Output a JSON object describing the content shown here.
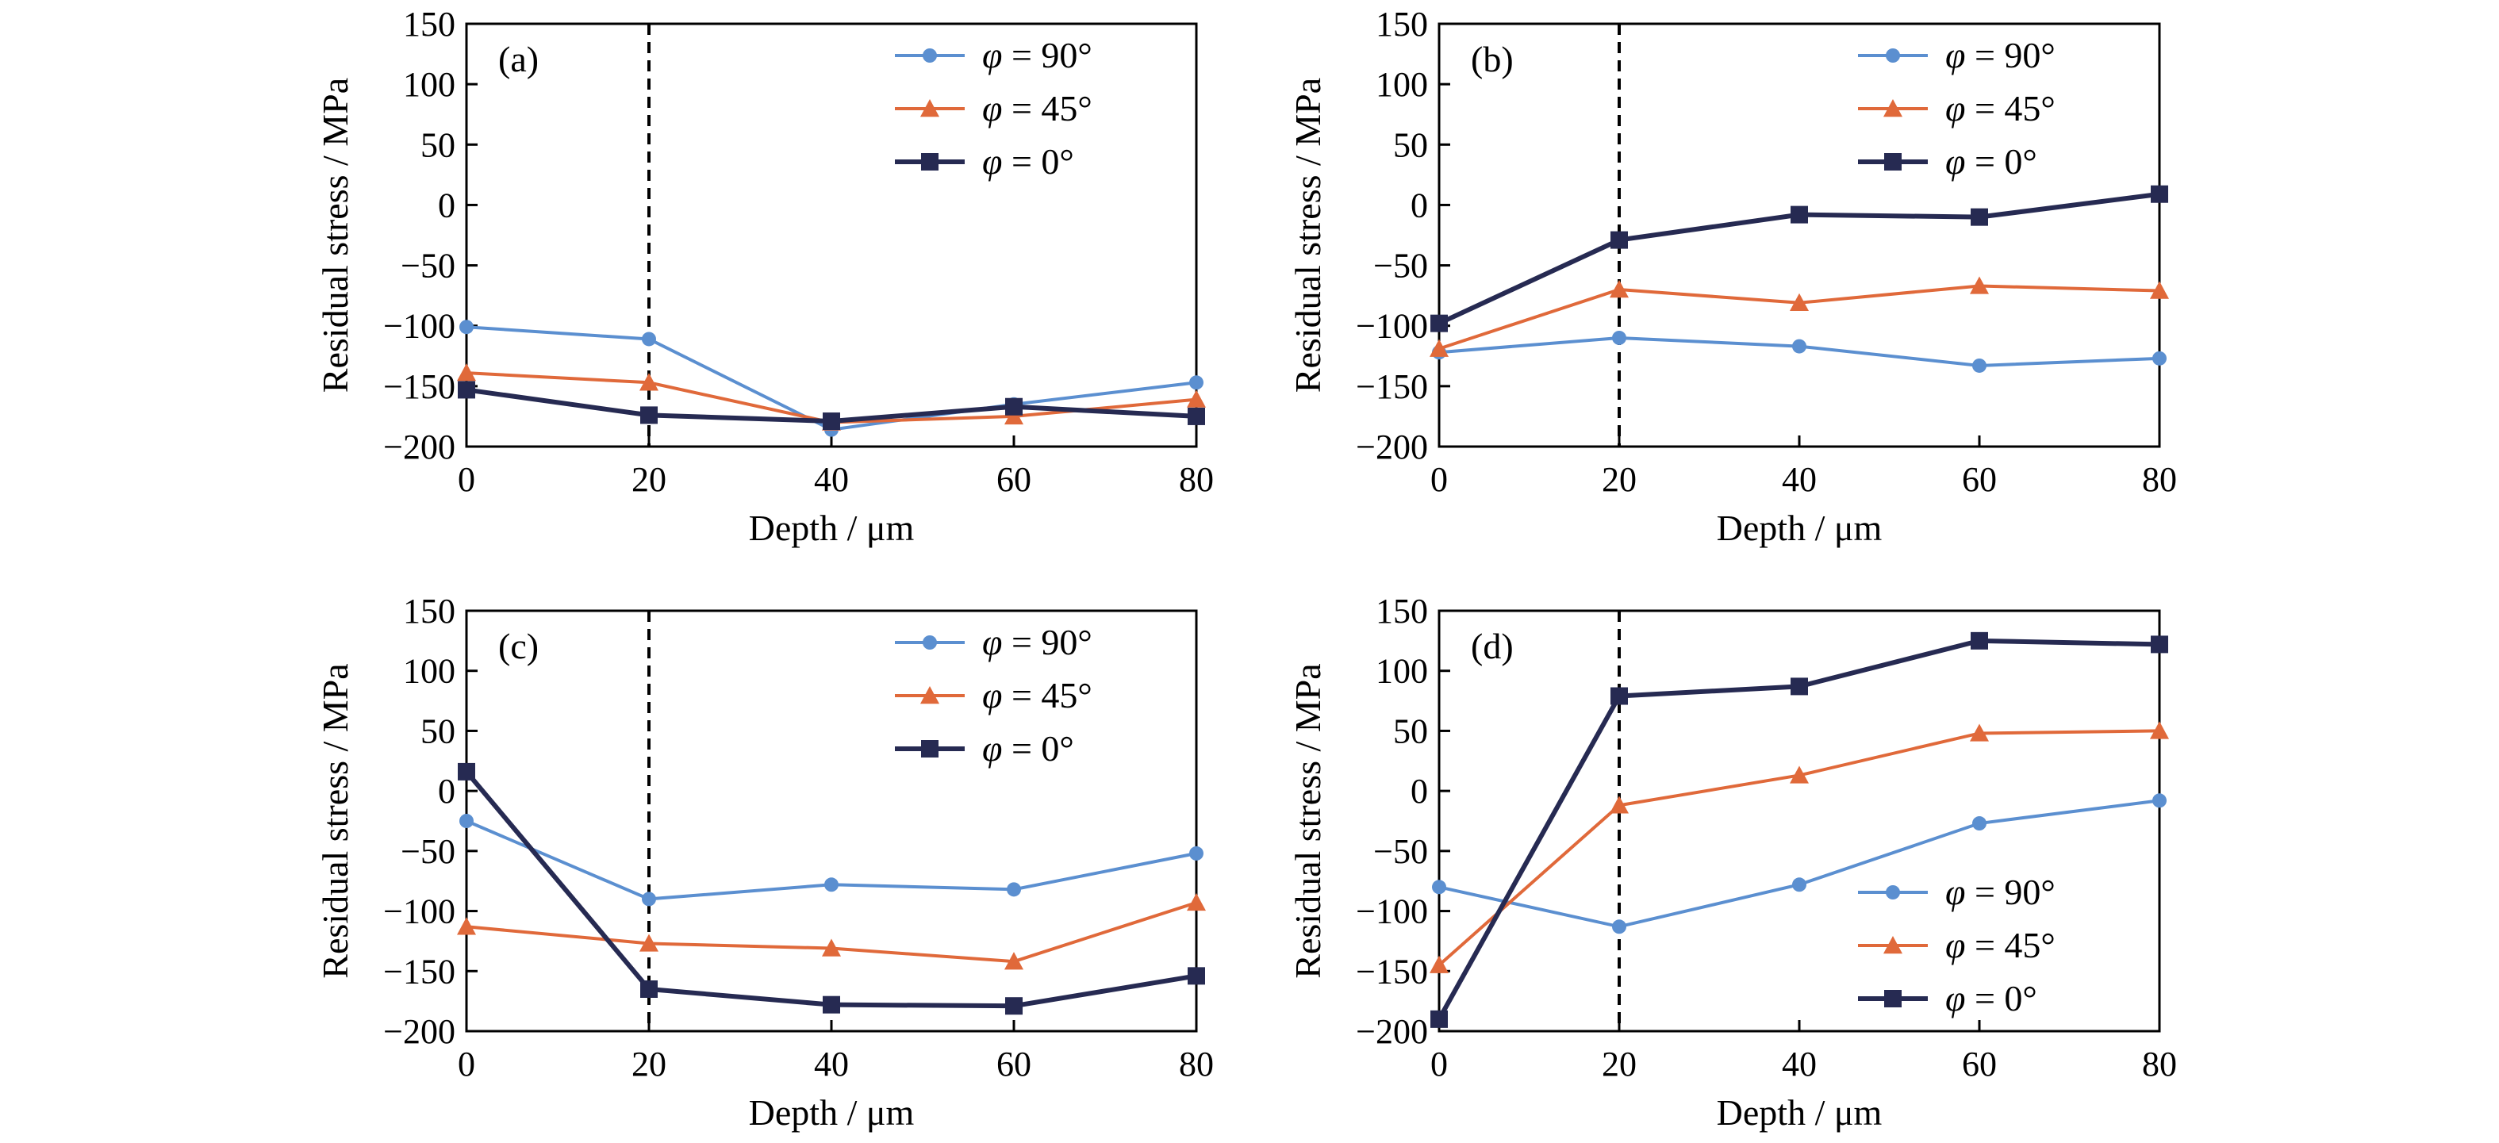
{
  "chart_data": [
    {
      "type": "line",
      "panel_label": "(a)",
      "xlabel": "Depth / μm",
      "ylabel": "Residual stress / MPa",
      "x": [
        0,
        20,
        40,
        60,
        80
      ],
      "xlim": [
        0,
        80
      ],
      "ylim": [
        -200,
        150
      ],
      "x_ticks": [
        "0",
        "20",
        "40",
        "60",
        "80"
      ],
      "y_ticks": [
        "150",
        "100",
        "50",
        "0",
        "−50",
        "−100",
        "−150",
        "−200"
      ],
      "reference_line_x": 20,
      "legend_position": "top-right",
      "series": [
        {
          "name": "φ = 90°",
          "values": [
            -101,
            -111,
            -186,
            -165,
            -147
          ]
        },
        {
          "name": "φ = 45°",
          "values": [
            -139,
            -147,
            -180,
            -175,
            -161
          ]
        },
        {
          "name": "φ = 0°",
          "values": [
            -153,
            -174,
            -179,
            -167,
            -175
          ]
        }
      ]
    },
    {
      "type": "line",
      "panel_label": "(b)",
      "xlabel": "Depth / μm",
      "ylabel": "Residual stress / MPa",
      "x": [
        0,
        20,
        40,
        60,
        80
      ],
      "xlim": [
        0,
        80
      ],
      "ylim": [
        -200,
        150
      ],
      "x_ticks": [
        "0",
        "20",
        "40",
        "60",
        "80"
      ],
      "y_ticks": [
        "150",
        "100",
        "50",
        "0",
        "−50",
        "−100",
        "−150",
        "−200"
      ],
      "reference_line_x": 20,
      "legend_position": "top-right",
      "series": [
        {
          "name": "φ = 90°",
          "values": [
            -122,
            -110,
            -117,
            -133,
            -127
          ]
        },
        {
          "name": "φ = 45°",
          "values": [
            -119,
            -70,
            -81,
            -67,
            -71
          ]
        },
        {
          "name": "φ = 0°",
          "values": [
            -98,
            -29,
            -8,
            -10,
            9
          ]
        }
      ]
    },
    {
      "type": "line",
      "panel_label": "(c)",
      "xlabel": "Depth / μm",
      "ylabel": "Residual stress / MPa",
      "x": [
        0,
        20,
        40,
        60,
        80
      ],
      "xlim": [
        0,
        80
      ],
      "ylim": [
        -200,
        150
      ],
      "x_ticks": [
        "0",
        "20",
        "40",
        "60",
        "80"
      ],
      "y_ticks": [
        "150",
        "100",
        "50",
        "0",
        "−50",
        "−100",
        "−150",
        "−200"
      ],
      "reference_line_x": 20,
      "legend_position": "top-right",
      "series": [
        {
          "name": "φ = 90°",
          "values": [
            -25,
            -90,
            -78,
            -82,
            -52
          ]
        },
        {
          "name": "φ = 45°",
          "values": [
            -113,
            -127,
            -131,
            -142,
            -93
          ]
        },
        {
          "name": "φ = 0°",
          "values": [
            16,
            -165,
            -178,
            -179,
            -154
          ]
        }
      ]
    },
    {
      "type": "line",
      "panel_label": "(d)",
      "xlabel": "Depth / μm",
      "ylabel": "Residual stress / MPa",
      "x": [
        0,
        20,
        40,
        60,
        80
      ],
      "xlim": [
        0,
        80
      ],
      "ylim": [
        -200,
        150
      ],
      "x_ticks": [
        "0",
        "20",
        "40",
        "60",
        "80"
      ],
      "y_ticks": [
        "150",
        "100",
        "50",
        "0",
        "−50",
        "−100",
        "−150",
        "−200"
      ],
      "reference_line_x": 20,
      "legend_position": "bottom-right",
      "series": [
        {
          "name": "φ = 90°",
          "values": [
            -80,
            -113,
            -78,
            -27,
            -8
          ]
        },
        {
          "name": "φ = 45°",
          "values": [
            -145,
            -12,
            13,
            48,
            50
          ]
        },
        {
          "name": "φ = 0°",
          "values": [
            -190,
            79,
            87,
            125,
            122
          ]
        }
      ]
    }
  ],
  "styles": {
    "series_colors": [
      "#5b8fd0",
      "#e0693a",
      "#262a52"
    ],
    "series_markers": [
      "circle",
      "triangle",
      "square"
    ],
    "reference_line_color": "#000000"
  }
}
